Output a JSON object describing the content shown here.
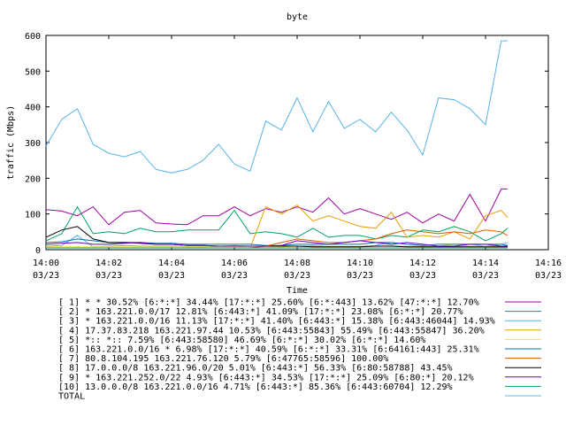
{
  "chart_data": {
    "type": "line",
    "title": "byte",
    "xlabel": "Time",
    "ylabel": "traffic (Mbps)",
    "grid": false,
    "legend_placement": "below",
    "ylim": [
      0,
      600
    ],
    "y_ticks": [
      0,
      100,
      200,
      300,
      400,
      500,
      600
    ],
    "x_range_minutes": [
      0,
      16
    ],
    "x_ticks": [
      {
        "minute": 0,
        "time": "14:00",
        "date": "03/23"
      },
      {
        "minute": 2,
        "time": "14:02",
        "date": "03/23"
      },
      {
        "minute": 4,
        "time": "14:04",
        "date": "03/23"
      },
      {
        "minute": 6,
        "time": "14:06",
        "date": "03/23"
      },
      {
        "minute": 8,
        "time": "14:08",
        "date": "03/23"
      },
      {
        "minute": 10,
        "time": "14:10",
        "date": "03/23"
      },
      {
        "minute": 12,
        "time": "14:12",
        "date": "03/23"
      },
      {
        "minute": 14,
        "time": "14:14",
        "date": "03/23"
      },
      {
        "minute": 16,
        "time": "14:16",
        "date": "03/23"
      }
    ],
    "x_minutes": [
      0,
      0.5,
      1,
      1.5,
      2,
      2.5,
      3,
      3.5,
      4,
      4.5,
      5,
      5.5,
      6,
      6.5,
      7,
      7.5,
      8,
      8.5,
      9,
      9.5,
      10,
      10.5,
      11,
      11.5,
      12,
      12.5,
      13,
      13.5,
      14,
      14.5,
      14.7
    ],
    "series": [
      {
        "label": "[ 1] * * 30.52%  [6:*:*] 34.44% [17:*:*] 25.60% [6:*:443] 13.62% [47:*:*] 12.70%",
        "color": "#a000a0",
        "values": [
          112,
          108,
          95,
          120,
          70,
          105,
          110,
          75,
          72,
          70,
          95,
          95,
          120,
          95,
          115,
          105,
          120,
          105,
          145,
          100,
          115,
          100,
          85,
          105,
          75,
          100,
          80,
          155,
          80,
          170,
          170
        ]
      },
      {
        "label": "[ 2] * 163.221.0.0/17 12.81%  [6:443:*] 41.09% [17:*:*] 23.08% [6:*:*] 20.77%",
        "color": "#00a060",
        "values": [
          25,
          45,
          120,
          45,
          50,
          45,
          60,
          50,
          50,
          55,
          55,
          55,
          110,
          45,
          50,
          45,
          35,
          60,
          35,
          40,
          40,
          30,
          40,
          35,
          55,
          50,
          65,
          50,
          25,
          45,
          60
        ]
      },
      {
        "label": "[ 3] * 163.221.0.0/16 11.13%  [17:*:*] 41.40% [6:443:*] 15.38% [6:443:46044] 14.93%",
        "color": "#56b4e9",
        "values": [
          10,
          12,
          40,
          8,
          10,
          12,
          10,
          10,
          10,
          8,
          8,
          10,
          12,
          10,
          10,
          10,
          10,
          12,
          10,
          10,
          10,
          12,
          20,
          15,
          12,
          10,
          15,
          15,
          10,
          15,
          20
        ]
      },
      {
        "label": "[ 4] 17.37.83.218 163.221.97.44 10.53%  [6:443:55843] 55.49% [6:443:55847] 36.20%",
        "color": "#e69f00",
        "values": [
          5,
          5,
          5,
          5,
          5,
          5,
          5,
          5,
          5,
          5,
          5,
          5,
          5,
          5,
          120,
          100,
          125,
          80,
          95,
          80,
          65,
          60,
          105,
          35,
          40,
          35,
          50,
          30,
          95,
          110,
          90
        ]
      },
      {
        "label": "[ 5] *:: *:: 7.59%  [6:443:58580] 46.69% [6:*:*] 30.02% [6:*:*] 14.60%",
        "color": "#f0e442",
        "values": [
          8,
          8,
          8,
          8,
          8,
          8,
          8,
          8,
          8,
          8,
          8,
          8,
          8,
          8,
          8,
          8,
          10,
          10,
          10,
          10,
          10,
          10,
          12,
          10,
          10,
          10,
          15,
          10,
          10,
          10,
          10
        ]
      },
      {
        "label": "[ 6] 163.221.0.0/16 * 6.98%  [17:*:*] 40.59% [6:*:*] 33.31% [6:64161:443] 25.31%",
        "color": "#0072b2",
        "values": [
          20,
          22,
          30,
          25,
          20,
          20,
          20,
          18,
          18,
          15,
          15,
          15,
          15,
          15,
          12,
          12,
          15,
          15,
          15,
          15,
          15,
          20,
          20,
          15,
          12,
          15,
          15,
          15,
          15,
          15,
          12
        ]
      },
      {
        "label": "[ 7] 80.8.104.195 163.221.76.120 5.79%  [6:47765:58596] 100.00%",
        "color": "#d55e00",
        "values": [
          5,
          5,
          5,
          5,
          5,
          5,
          5,
          5,
          5,
          5,
          5,
          5,
          5,
          5,
          10,
          20,
          30,
          25,
          20,
          20,
          25,
          30,
          45,
          55,
          50,
          45,
          50,
          45,
          55,
          50,
          40
        ]
      },
      {
        "label": "[ 8] 17.0.0.0/8 163.221.96.0/20 5.01%  [6:443:*] 56.33% [6:80:58788] 43.45%",
        "color": "#000000",
        "values": [
          35,
          55,
          65,
          30,
          20,
          20,
          18,
          15,
          15,
          12,
          12,
          10,
          10,
          10,
          10,
          10,
          10,
          8,
          8,
          8,
          8,
          10,
          10,
          8,
          8,
          8,
          8,
          8,
          8,
          8,
          8
        ]
      },
      {
        "label": "[ 9] * 163.221.252.0/22 4.93%  [6:443:*] 34.53% [17:*:*] 25.09% [6:80:*] 20.12%",
        "color": "#6a00c8",
        "values": [
          15,
          18,
          20,
          15,
          15,
          18,
          20,
          15,
          15,
          12,
          12,
          10,
          10,
          10,
          10,
          12,
          25,
          20,
          15,
          20,
          25,
          20,
          15,
          20,
          15,
          10,
          10,
          15,
          15,
          10,
          10
        ]
      },
      {
        "label": "[10] 13.0.0.0/8 163.221.0.0/16 4.71%  [6:443:*] 85.36% [6:443:60704] 12.29%",
        "color": "#009e73",
        "values": [
          5,
          5,
          5,
          5,
          5,
          5,
          5,
          5,
          5,
          5,
          5,
          5,
          5,
          5,
          5,
          5,
          5,
          5,
          5,
          5,
          5,
          5,
          5,
          5,
          5,
          5,
          5,
          5,
          5,
          5,
          5
        ]
      },
      {
        "label": "TOTAL",
        "color": "#56b4e9",
        "values": [
          290,
          365,
          395,
          295,
          270,
          260,
          275,
          225,
          215,
          225,
          250,
          295,
          240,
          220,
          360,
          335,
          425,
          330,
          415,
          340,
          365,
          330,
          385,
          335,
          265,
          425,
          420,
          395,
          350,
          585,
          585
        ]
      }
    ]
  }
}
